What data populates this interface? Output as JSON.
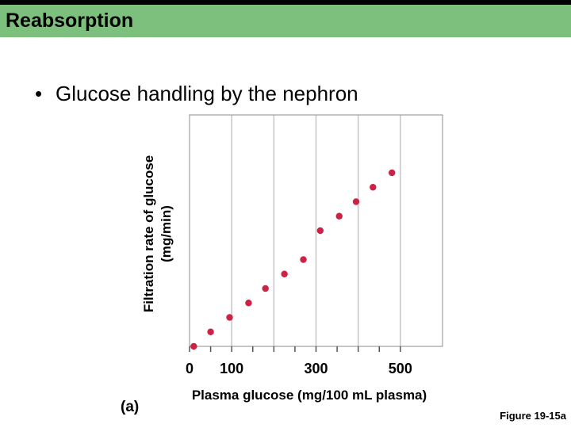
{
  "slide": {
    "title": "Reabsorption",
    "bullet_glyph": "•",
    "bullet_text": "Glucose handling by the nephron",
    "figure_caption": "Figure 19-15a",
    "panel_label": "(a)"
  },
  "colors": {
    "title_bar": "#7dbf7d",
    "point": "#cc2244",
    "gridline": "#c9c9c9",
    "axis": "#8c8c8c"
  },
  "chart_data": {
    "type": "scatter",
    "xlabel": "Plasma glucose (mg/100 mL plasma)",
    "ylabel": "Filtration rate of glucose (mg/min)",
    "ylabel_lines": [
      "Filtration rate of glucose",
      "(mg/min)"
    ],
    "xlim": [
      0,
      600
    ],
    "ylim": [
      0,
      800
    ],
    "x_ticks": [
      0,
      50,
      100,
      150,
      200,
      250,
      300,
      350,
      400,
      450,
      500
    ],
    "x_tick_labels": [
      {
        "value": 0,
        "label": "0"
      },
      {
        "value": 100,
        "label": "100"
      },
      {
        "value": 300,
        "label": "300"
      },
      {
        "value": 500,
        "label": "500"
      }
    ],
    "gridlines_x": [
      100,
      200,
      300,
      400,
      500
    ],
    "series": [
      {
        "x": [
          10,
          50,
          95,
          140,
          180,
          225,
          270,
          310,
          355,
          395,
          435,
          480
        ],
        "y": [
          0,
          50,
          100,
          150,
          200,
          250,
          300,
          400,
          450,
          500,
          550,
          600
        ]
      }
    ]
  }
}
